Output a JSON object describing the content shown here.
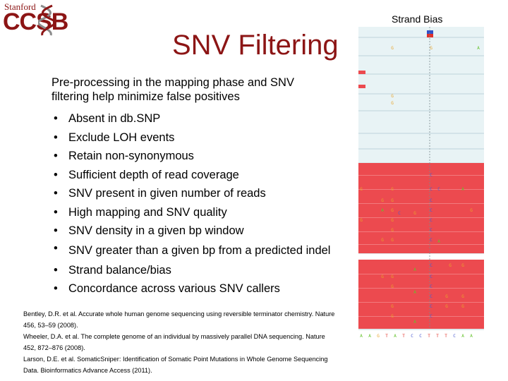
{
  "logo": {
    "top_text": "Stanford",
    "main_text": "CCSB"
  },
  "title": "SNV Filtering",
  "intro": "Pre-processing in the mapping phase and SNV filtering help minimize false positives",
  "bullets": [
    "Absent in db.SNP",
    "Exclude LOH events",
    "Retain non-synonymous",
    "Sufficient depth of read coverage",
    "SNV present in given number of reads",
    "High mapping and SNV quality",
    "SNV density in a given bp window",
    "SNV greater than a given bp from a predicted indel",
    "Strand balance/bias",
    "Concordance across various SNV callers"
  ],
  "references": [
    "Bentley, D.R. et al. Accurate whole human genome sequencing using reversible terminator chemistry. Nature 456, 53–59 (2008).",
    "Wheeler, D.A. et al. The complete genome of an individual by massively parallel DNA sequencing. Nature 452, 872–876 (2008).",
    "Larson, D.E. et al. SomaticSniper: Identification of Somatic Point Mutations in Whole Genome Sequencing Data. Bioinformatics Advance Access (2011)."
  ],
  "strand_panel": {
    "title": "Strand Bias",
    "colors": {
      "forward": "#e8f3f5",
      "reverse": "#ec4a4f",
      "bg": "#dde9ec",
      "base_green": "#63c22a",
      "base_orange": "#e8a42a",
      "base_blue": "#4a5ad0",
      "base_red": "#e0302a"
    },
    "sequence": [
      "A",
      "A",
      "G",
      "T",
      "A",
      "T",
      "C",
      "C",
      "T",
      "T",
      "T",
      "C",
      "A",
      "A"
    ]
  }
}
